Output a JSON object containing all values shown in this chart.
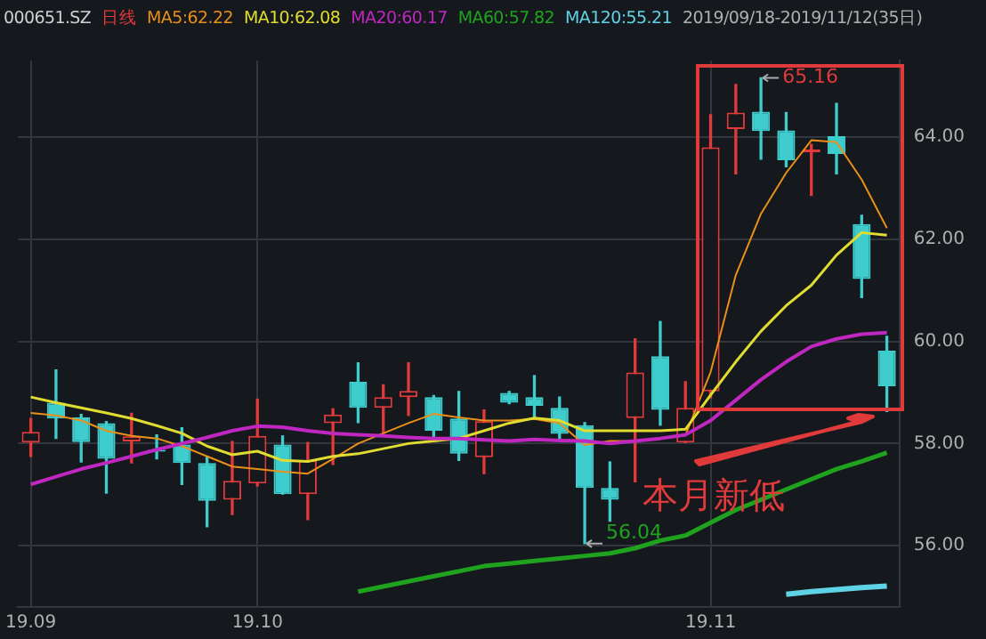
{
  "chart_data": {
    "type": "candlestick",
    "title": "000651.SZ",
    "categories": [
      "19.09",
      null,
      null,
      null,
      null,
      null,
      null,
      null,
      null,
      "19.10",
      null,
      null,
      null,
      null,
      null,
      null,
      null,
      null,
      null,
      null,
      null,
      null,
      null,
      null,
      null,
      null,
      null,
      "19.11",
      null,
      null,
      null,
      null,
      null,
      null,
      null
    ],
    "ohlc": [
      [
        58.02,
        58.49,
        57.75,
        58.23
      ],
      [
        58.8,
        59.44,
        58.1,
        58.49
      ],
      [
        58.51,
        58.57,
        57.64,
        58.03
      ],
      [
        58.4,
        58.43,
        57.03,
        57.7
      ],
      [
        58.04,
        58.59,
        57.62,
        58.14
      ],
      [
        57.86,
        58.17,
        57.7,
        57.84
      ],
      [
        57.98,
        58.31,
        57.2,
        57.62
      ],
      [
        57.62,
        57.75,
        56.37,
        56.88
      ],
      [
        56.9,
        58.04,
        56.61,
        57.27
      ],
      [
        57.22,
        58.87,
        57.17,
        58.15
      ],
      [
        57.98,
        58.15,
        57.01,
        57.01
      ],
      [
        57.01,
        58.02,
        56.51,
        57.67
      ],
      [
        58.4,
        58.68,
        57.59,
        58.57
      ],
      [
        59.21,
        59.58,
        58.41,
        58.7
      ],
      [
        58.7,
        59.15,
        58.2,
        58.91
      ],
      [
        58.91,
        59.58,
        58.55,
        59.03
      ],
      [
        58.91,
        58.94,
        58.1,
        58.25
      ],
      [
        58.49,
        59.02,
        57.67,
        57.8
      ],
      [
        57.73,
        58.66,
        57.41,
        58.44
      ],
      [
        58.99,
        59.02,
        58.78,
        58.8
      ],
      [
        58.91,
        59.33,
        58.52,
        58.74
      ],
      [
        58.7,
        58.91,
        58.04,
        58.19
      ],
      [
        58.36,
        58.41,
        56.04,
        57.13
      ],
      [
        57.13,
        57.64,
        56.48,
        56.9
      ],
      [
        58.5,
        60.05,
        57.25,
        59.39
      ],
      [
        59.71,
        60.39,
        58.36,
        58.66
      ],
      [
        58.02,
        59.21,
        58.02,
        58.7
      ],
      [
        59.02,
        64.44,
        58.9,
        63.8
      ],
      [
        64.16,
        65.03,
        63.28,
        64.48
      ],
      [
        64.5,
        65.16,
        63.57,
        64.12
      ],
      [
        64.13,
        64.48,
        63.42,
        63.55
      ],
      [
        63.7,
        63.86,
        62.86,
        63.76
      ],
      [
        64.02,
        64.66,
        63.28,
        63.67
      ],
      [
        62.3,
        62.47,
        60.86,
        61.22
      ],
      [
        59.82,
        60.1,
        58.63,
        59.12
      ]
    ],
    "colors": [
      "#e03a3a",
      "#3ecccc",
      "#3ecccc",
      "#3ecccc",
      "#e03a3a",
      "#3ecccc",
      "#3ecccc",
      "#3ecccc",
      "#e03a3a",
      "#e03a3a",
      "#3ecccc",
      "#e03a3a",
      "#e03a3a",
      "#3ecccc",
      "#e03a3a",
      "#e03a3a",
      "#3ecccc",
      "#3ecccc",
      "#e03a3a",
      "#3ecccc",
      "#3ecccc",
      "#3ecccc",
      "#3ecccc",
      "#3ecccc",
      "#e03a3a",
      "#3ecccc",
      "#e03a3a",
      "#e03a3a",
      "#e03a3a",
      "#3ecccc",
      "#3ecccc",
      "#e03a3a",
      "#3ecccc",
      "#3ecccc",
      "#3ecccc"
    ],
    "series": [
      {
        "type": "line",
        "name": "MA5:62.22",
        "color": "#e8901a",
        "values": [
          58.6,
          58.55,
          58.45,
          58.25,
          58.15,
          58.1,
          57.95,
          57.75,
          57.55,
          57.5,
          57.45,
          57.41,
          57.7,
          58.0,
          58.2,
          58.4,
          58.58,
          58.51,
          58.45,
          58.45,
          58.48,
          58.4,
          57.97,
          58.05,
          58.05,
          58.1,
          58.16,
          59.4,
          61.3,
          62.5,
          63.3,
          63.94,
          63.9,
          63.17,
          62.22
        ]
      },
      {
        "type": "line",
        "name": "MA10:62.08",
        "color": "#e0dc30",
        "values": [
          58.91,
          58.8,
          58.7,
          58.6,
          58.49,
          58.35,
          58.2,
          57.95,
          57.78,
          57.85,
          57.67,
          57.65,
          57.75,
          57.8,
          57.9,
          58.0,
          58.05,
          58.1,
          58.25,
          58.4,
          58.5,
          58.45,
          58.25,
          58.25,
          58.25,
          58.25,
          58.28,
          58.95,
          59.6,
          60.2,
          60.7,
          61.1,
          61.69,
          62.13,
          62.08
        ]
      },
      {
        "type": "line",
        "name": "MA20:60.17",
        "color": "#c026c0",
        "values": [
          57.2,
          57.35,
          57.5,
          57.62,
          57.75,
          57.88,
          58.0,
          58.12,
          58.25,
          58.34,
          58.32,
          58.25,
          58.2,
          58.17,
          58.15,
          58.12,
          58.1,
          58.1,
          58.07,
          58.05,
          58.08,
          58.06,
          58.05,
          58.0,
          58.05,
          58.1,
          58.17,
          58.45,
          58.85,
          59.25,
          59.6,
          59.9,
          60.05,
          60.14,
          60.17
        ]
      },
      {
        "type": "line",
        "name": "MA60:57.82",
        "color": "#1fa31f",
        "values": [
          null,
          null,
          null,
          null,
          null,
          null,
          null,
          null,
          null,
          null,
          null,
          null,
          null,
          55.1,
          55.2,
          55.3,
          55.4,
          55.5,
          55.6,
          55.65,
          55.7,
          55.75,
          55.8,
          55.85,
          55.95,
          56.1,
          56.2,
          56.45,
          56.7,
          56.9,
          57.1,
          57.3,
          57.5,
          57.65,
          57.82
        ]
      },
      {
        "type": "line",
        "name": "MA120:55.21",
        "color": "#5fd3e6",
        "values": [
          null,
          null,
          null,
          null,
          null,
          null,
          null,
          null,
          null,
          null,
          null,
          null,
          null,
          null,
          null,
          null,
          null,
          null,
          null,
          null,
          null,
          null,
          null,
          null,
          null,
          null,
          null,
          null,
          null,
          null,
          55.05,
          55.1,
          55.14,
          55.18,
          55.21
        ]
      }
    ],
    "ylim": [
      54.8,
      65.5
    ],
    "yticks": [
      {
        "value": 56,
        "label": "56.00"
      },
      {
        "value": 58,
        "label": "58.00"
      },
      {
        "value": 60,
        "label": "60.00"
      },
      {
        "value": 62,
        "label": "62.00"
      },
      {
        "value": 64,
        "label": "64.00"
      }
    ],
    "grid": true,
    "legend": "top",
    "annotations": [
      "日线",
      "2019/09/18-2019/11/12(35日)",
      "65.16",
      "56.04",
      "本月新低"
    ]
  }
}
